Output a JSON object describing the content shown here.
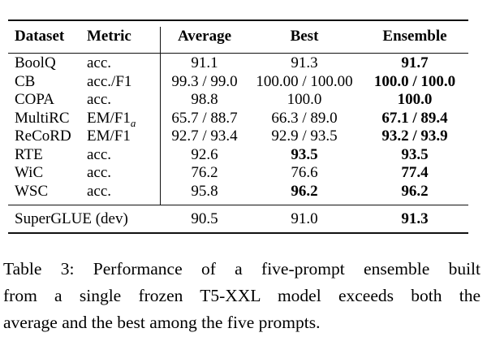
{
  "table": {
    "headers": {
      "dataset": "Dataset",
      "metric": "Metric",
      "average": "Average",
      "best": "Best",
      "ensemble": "Ensemble"
    },
    "rows": [
      {
        "dataset": "BoolQ",
        "metric": "acc.",
        "average": "91.1",
        "best": "91.3",
        "ensemble": "91.7"
      },
      {
        "dataset": "CB",
        "metric": "acc./F1",
        "average": "99.3 / 99.0",
        "best": "100.00 / 100.00",
        "ensemble": "100.0 / 100.0"
      },
      {
        "dataset": "COPA",
        "metric": "acc.",
        "average": "98.8",
        "best": "100.0",
        "ensemble": "100.0"
      },
      {
        "dataset": "MultiRC",
        "metric": "EM/F1",
        "metric_sub": "a",
        "average": "65.7 / 88.7",
        "best": "66.3 / 89.0",
        "ensemble": "67.1 / 89.4"
      },
      {
        "dataset": "ReCoRD",
        "metric": "EM/F1",
        "average": "92.7 / 93.4",
        "best": "92.9 / 93.5",
        "ensemble": "93.2 / 93.9"
      },
      {
        "dataset": "RTE",
        "metric": "acc.",
        "average": "92.6",
        "best": "93.5",
        "ensemble": "93.5"
      },
      {
        "dataset": "WiC",
        "metric": "acc.",
        "average": "76.2",
        "best": "76.6",
        "ensemble": "77.4"
      },
      {
        "dataset": "WSC",
        "metric": "acc.",
        "average": "95.8",
        "best": "96.2",
        "ensemble": "96.2"
      }
    ],
    "summary": {
      "label": "SuperGLUE (dev)",
      "average": "90.5",
      "best": "91.0",
      "ensemble": "91.3"
    }
  },
  "caption": {
    "lines": [
      "Table 3: Performance of a five-prompt ensemble built",
      "from a single frozen T5-XXL model exceeds both the",
      "average and the best among the five prompts."
    ]
  },
  "colors": {
    "text": "#000000",
    "rule": "#111111",
    "background": "#ffffff"
  }
}
